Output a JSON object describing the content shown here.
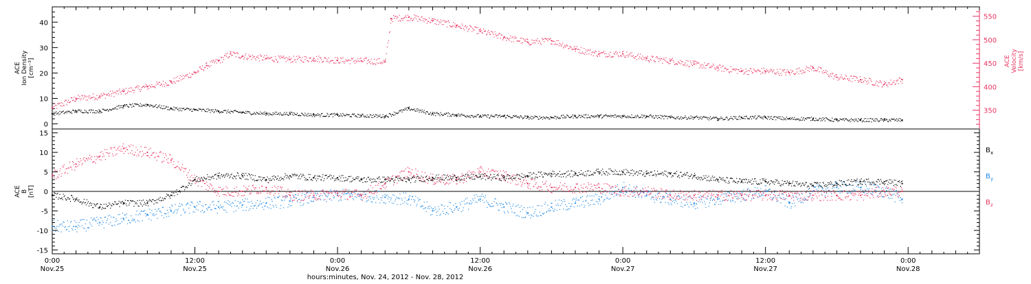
{
  "colors": {
    "black": "#000000",
    "pink": "#e8325f",
    "blue": "#1e88e5",
    "axis": "#000000"
  },
  "x_axis": {
    "range_hours": [
      0,
      78
    ],
    "label": "hours:minutes, Nov. 24, 2012 - Nov. 28, 2012",
    "ticks": [
      {
        "value": 0,
        "line1": "0:00",
        "line2": "Nov.25"
      },
      {
        "value": 12,
        "line1": "12:00",
        "line2": "Nov.25"
      },
      {
        "value": 24,
        "line1": "0:00",
        "line2": "Nov.26"
      },
      {
        "value": 36,
        "line1": "12:00",
        "line2": "Nov.26"
      },
      {
        "value": 48,
        "line1": "0:00",
        "line2": "Nov.27"
      },
      {
        "value": 60,
        "line1": "12:00",
        "line2": "Nov.27"
      },
      {
        "value": 72,
        "line1": "0:00",
        "line2": "Nov.28"
      }
    ]
  },
  "chart_data": [
    {
      "type": "scatter",
      "panel": "top",
      "left_axis": {
        "label_lines": [
          "ACE",
          "Ion Density",
          "[cm⁻³]"
        ],
        "ylim": [
          -2,
          46
        ],
        "ticks": [
          0,
          10,
          20,
          30,
          40
        ]
      },
      "right_axis": {
        "label_lines": [
          "ACE",
          "Velocity",
          "[km/s]"
        ],
        "ylim": [
          310,
          570
        ],
        "ticks": [
          350,
          400,
          450,
          500,
          550
        ]
      },
      "series": [
        {
          "name": "",
          "axis": "left",
          "color": "black",
          "x": [
            0,
            2,
            4,
            6,
            8,
            10,
            12,
            14,
            16,
            18,
            20,
            22,
            24,
            26,
            28,
            30,
            32,
            34,
            36,
            38,
            40,
            42,
            44,
            46,
            48,
            50,
            52,
            54,
            56,
            58,
            60,
            62,
            64,
            66,
            68,
            70,
            71.5
          ],
          "y": [
            4,
            5,
            5,
            7,
            7.5,
            6,
            5.5,
            5,
            4.5,
            4,
            4,
            3.5,
            3.5,
            3.2,
            3,
            6,
            4,
            3.5,
            3,
            3,
            2.5,
            2.5,
            3,
            3,
            3,
            3,
            2.5,
            2.5,
            2,
            2.5,
            2.5,
            2,
            2,
            1.5,
            1.5,
            1.5,
            1.5
          ]
        },
        {
          "name": "",
          "axis": "right",
          "color": "pink",
          "x": [
            0,
            2,
            4,
            6,
            8,
            10,
            12,
            13,
            14,
            15,
            16,
            18,
            20,
            22,
            24,
            26,
            28,
            28.5,
            30,
            32,
            34,
            36,
            38,
            40,
            42,
            44,
            46,
            48,
            50,
            52,
            54,
            56,
            58,
            60,
            62,
            64,
            66,
            68,
            70,
            71.5
          ],
          "y": [
            355,
            375,
            380,
            390,
            400,
            410,
            430,
            445,
            455,
            470,
            465,
            460,
            458,
            460,
            456,
            455,
            453,
            545,
            548,
            540,
            530,
            518,
            505,
            495,
            498,
            480,
            470,
            470,
            460,
            455,
            448,
            440,
            433,
            433,
            430,
            440,
            420,
            415,
            405,
            415
          ]
        }
      ]
    },
    {
      "type": "scatter",
      "panel": "bottom",
      "left_axis": {
        "label_lines": [
          "ACE",
          "B",
          "[nT]"
        ],
        "ylim": [
          -16,
          16
        ],
        "ticks": [
          -15,
          -10,
          -5,
          0,
          5,
          10,
          15
        ]
      },
      "zero_line": true,
      "series": [
        {
          "name": "B",
          "subscript": "x",
          "color": "black",
          "x": [
            0,
            2,
            4,
            6,
            8,
            10,
            12,
            14,
            16,
            18,
            20,
            22,
            24,
            26,
            28,
            30,
            32,
            34,
            36,
            38,
            40,
            42,
            44,
            46,
            48,
            50,
            52,
            54,
            56,
            58,
            60,
            62,
            64,
            66,
            68,
            70,
            71.5
          ],
          "y": [
            -1,
            -2,
            -4,
            -3,
            -3,
            -1,
            3,
            4,
            4,
            3,
            4,
            3.5,
            3.5,
            3,
            3,
            3,
            3.5,
            3.5,
            3.8,
            3.5,
            4,
            4.5,
            4.5,
            5,
            5,
            4.5,
            4.5,
            4,
            3,
            2.5,
            2.5,
            2,
            1.5,
            2,
            2.5,
            2.5,
            2
          ]
        },
        {
          "name": "B",
          "subscript": "y",
          "color": "blue",
          "x": [
            0,
            2,
            4,
            6,
            8,
            10,
            12,
            14,
            16,
            18,
            20,
            22,
            24,
            26,
            28,
            30,
            32,
            34,
            36,
            38,
            40,
            42,
            44,
            46,
            48,
            50,
            52,
            54,
            56,
            58,
            60,
            62,
            64,
            66,
            68,
            70,
            71.5
          ],
          "y": [
            -9,
            -9,
            -8,
            -7,
            -6,
            -5,
            -4,
            -4,
            -3.5,
            -3,
            -2.5,
            -1.5,
            -1,
            -1,
            -1.5,
            -2,
            -5,
            -4,
            -2,
            -4,
            -5.5,
            -4,
            -3,
            -2,
            1,
            -1,
            -2,
            -3,
            -2,
            -1,
            0,
            -3,
            0,
            1,
            1,
            0,
            -2
          ]
        },
        {
          "name": "B",
          "subscript": "z",
          "color": "pink",
          "x": [
            0,
            2,
            4,
            6,
            8,
            10,
            12,
            14,
            16,
            18,
            20,
            22,
            24,
            26,
            28,
            30,
            32,
            34,
            36,
            38,
            40,
            42,
            44,
            46,
            48,
            50,
            52,
            54,
            56,
            58,
            60,
            62,
            64,
            66,
            68,
            70,
            71.5
          ],
          "y": [
            4,
            7,
            9,
            11,
            10,
            8,
            3,
            0,
            0,
            1,
            -1,
            -1,
            -0.5,
            -1,
            2,
            5,
            3,
            3,
            5,
            4,
            2,
            1,
            1,
            1,
            0,
            0,
            -1,
            -1,
            -1,
            -1,
            -1,
            -1,
            -1,
            -1,
            -1,
            0,
            0
          ]
        }
      ]
    }
  ]
}
